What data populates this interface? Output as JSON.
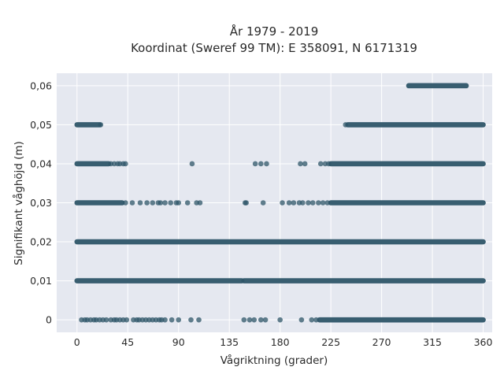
{
  "chart_data": {
    "type": "scatter",
    "title": "År 1979 - 2019",
    "subtitle": "Koordinat (Sweref 99 TM): E 358091, N 6171319",
    "xlabel": "Vågriktning (grader)",
    "ylabel": "Signifikant våghöjd (m)",
    "xlim": [
      -18,
      368
    ],
    "ylim": [
      -0.0032,
      0.0632
    ],
    "x_ticks": [
      0,
      45,
      90,
      135,
      180,
      225,
      270,
      315,
      360
    ],
    "x_tick_labels": [
      "0",
      "45",
      "90",
      "135",
      "180",
      "225",
      "270",
      "315",
      "360"
    ],
    "y_ticks": [
      0,
      0.01,
      0.02,
      0.03,
      0.04,
      0.05,
      0.06
    ],
    "y_tick_labels": [
      "0",
      "0,01",
      "0,02",
      "0,03",
      "0,04",
      "0,05",
      "0,06"
    ],
    "grid": true,
    "marker_color": "#2e5568",
    "background_color": "#e5e8f0",
    "series": [
      {
        "y": 0.06,
        "dense_ranges": [
          [
            294,
            345
          ]
        ],
        "points": []
      },
      {
        "y": 0.05,
        "dense_ranges": [
          [
            0,
            20
          ],
          [
            240,
            360
          ]
        ],
        "points": [
          21,
          238
        ]
      },
      {
        "y": 0.04,
        "dense_ranges": [
          [
            0,
            28
          ],
          [
            225,
            360
          ]
        ],
        "points": [
          30,
          33,
          36,
          38,
          41,
          43,
          102,
          158,
          163,
          168,
          198,
          202,
          216,
          220,
          223
        ]
      },
      {
        "y": 0.03,
        "dense_ranges": [
          [
            0,
            40
          ],
          [
            225,
            360
          ]
        ],
        "points": [
          43,
          49,
          56,
          62,
          67,
          72,
          74,
          78,
          83,
          88,
          90,
          98,
          106,
          109,
          149,
          150,
          165,
          182,
          188,
          192,
          197,
          200,
          205,
          209,
          214,
          218,
          222
        ]
      },
      {
        "y": 0.02,
        "dense_ranges": [
          [
            0,
            360
          ]
        ],
        "points": []
      },
      {
        "y": 0.01,
        "dense_ranges": [
          [
            0,
            146
          ],
          [
            148,
            360
          ]
        ],
        "points": []
      },
      {
        "y": 0,
        "dense_ranges": [
          [
            215,
            360
          ]
        ],
        "points": [
          4,
          7,
          9,
          12,
          15,
          17,
          20,
          23,
          26,
          30,
          33,
          35,
          38,
          41,
          44,
          50,
          53,
          55,
          58,
          61,
          64,
          67,
          70,
          73,
          75,
          78,
          84,
          90,
          101,
          108,
          148,
          153,
          157,
          163,
          167,
          180,
          199,
          208,
          212
        ]
      }
    ]
  }
}
